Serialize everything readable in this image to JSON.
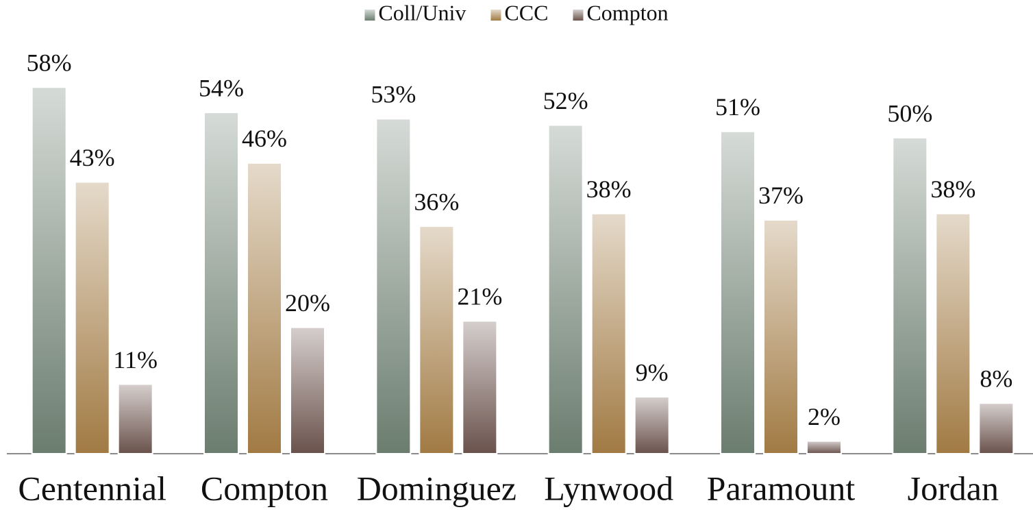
{
  "chart_data": {
    "type": "bar",
    "categories": [
      "Centennial",
      "Compton",
      "Dominguez",
      "Lynwood",
      "Paramount",
      "Jordan"
    ],
    "series": [
      {
        "name": "Coll/Univ",
        "color": "#6b7d6f",
        "values": [
          58,
          54,
          53,
          52,
          51,
          50
        ],
        "value_labels": [
          "58%",
          "54%",
          "53%",
          "52%",
          "51%",
          "50%"
        ]
      },
      {
        "name": "CCC",
        "color": "#a17a43",
        "values": [
          43,
          46,
          36,
          38,
          37,
          38
        ],
        "value_labels": [
          "43%",
          "46%",
          "36%",
          "38%",
          "37%",
          "38%"
        ]
      },
      {
        "name": "Compton",
        "color": "#6a524c",
        "values": [
          11,
          20,
          21,
          9,
          2,
          8
        ],
        "value_labels": [
          "11%",
          "20%",
          "21%",
          "9%",
          "2%",
          "8%"
        ]
      }
    ],
    "legend": "top"
  }
}
